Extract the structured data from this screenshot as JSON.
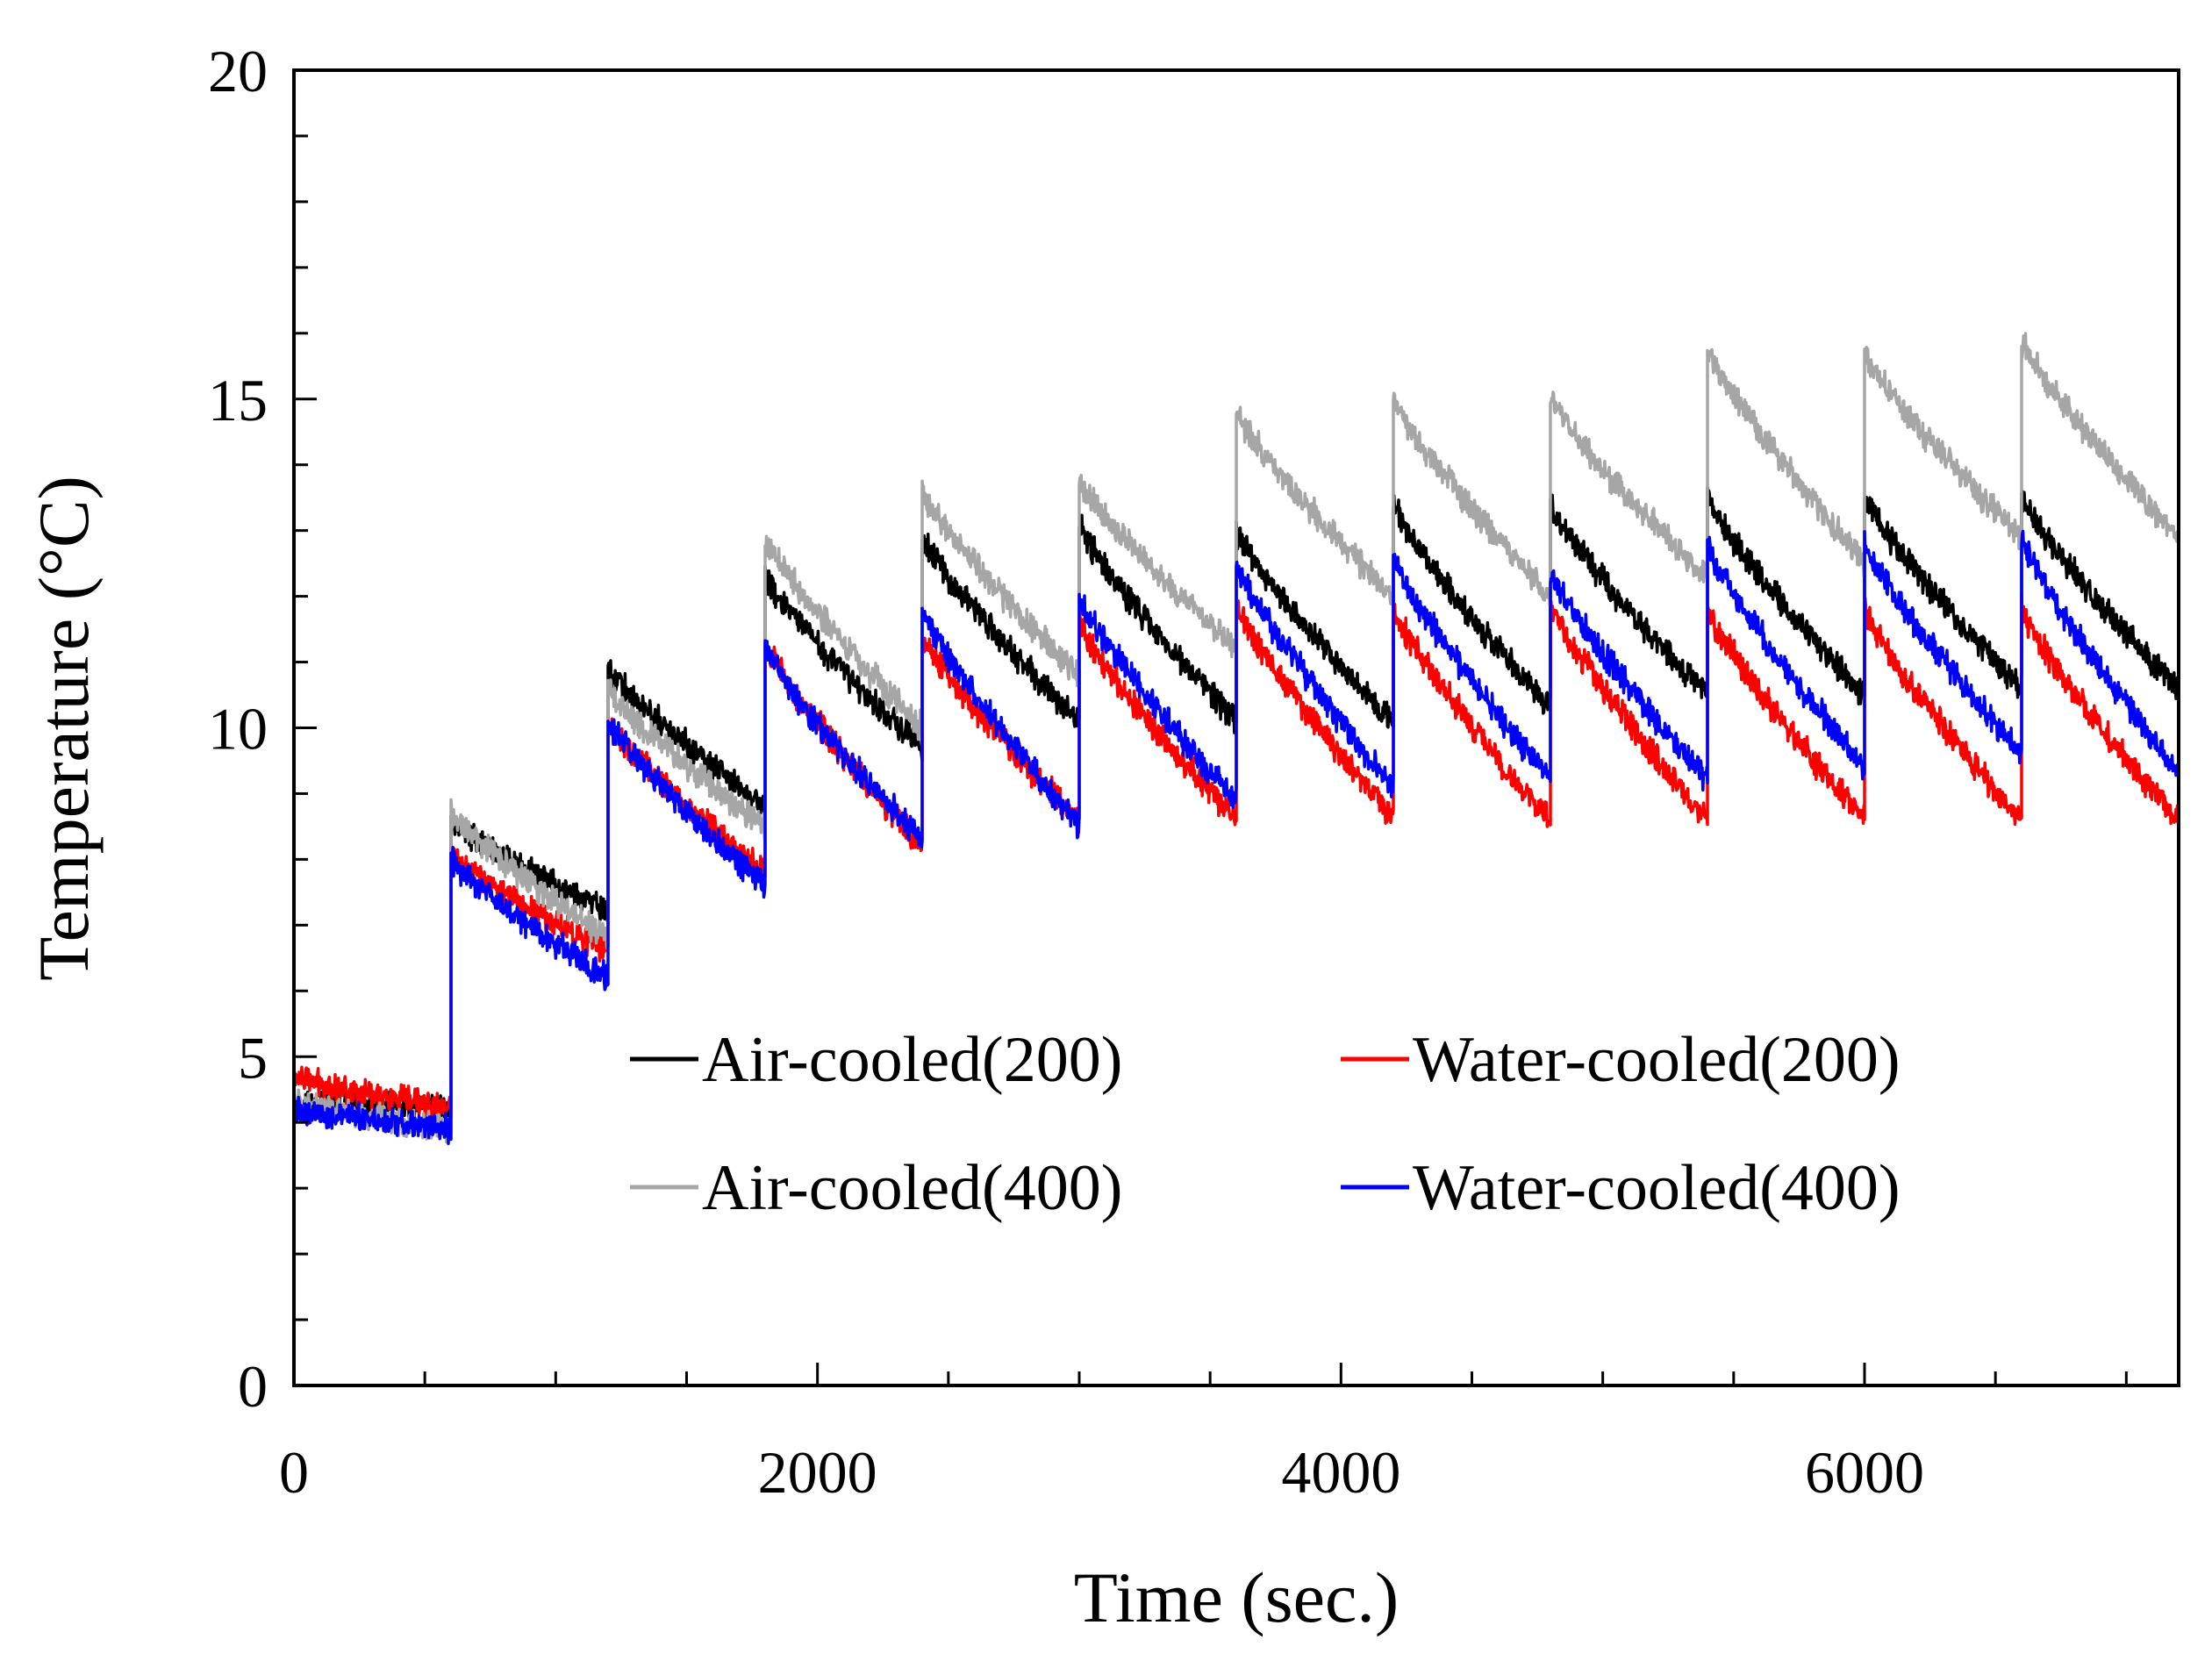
{
  "chart_data": {
    "type": "line",
    "title": "",
    "xlabel": "Time (sec.)",
    "ylabel": "Temperature (°C)",
    "xlim": [
      0,
      7200
    ],
    "ylim": [
      0,
      20
    ],
    "xticks": [
      0,
      2000,
      4000,
      6000
    ],
    "yticks": [
      0,
      5,
      10,
      15,
      20
    ],
    "x_minor_step": 500,
    "y_minor_step": 1,
    "grid": false,
    "legend_position": "center, two columns",
    "cycle_period": 600,
    "series": [
      {
        "name": "Air-cooled(200)",
        "color": "#000000",
        "cycles": [
          [
            0,
            4.3,
            4.2
          ],
          [
            600,
            8.6,
            7.2
          ],
          [
            1200,
            10.9,
            8.8
          ],
          [
            1800,
            12.3,
            9.7
          ],
          [
            2400,
            12.9,
            10.1
          ],
          [
            3000,
            13.1,
            10.1
          ],
          [
            3600,
            13.0,
            10.1
          ],
          [
            4200,
            13.4,
            10.3
          ],
          [
            4800,
            13.4,
            10.5
          ],
          [
            5400,
            13.5,
            10.5
          ],
          [
            6000,
            13.5,
            10.6
          ],
          [
            6600,
            13.5,
            10.6
          ]
        ]
      },
      {
        "name": "Water-cooled(200)",
        "color": "#ff0000",
        "cycles": [
          [
            0,
            4.7,
            4.2
          ],
          [
            600,
            8.1,
            6.6
          ],
          [
            1200,
            10.1,
            7.8
          ],
          [
            1800,
            11.3,
            8.2
          ],
          [
            2400,
            11.4,
            8.6
          ],
          [
            3000,
            11.6,
            8.6
          ],
          [
            3600,
            11.9,
            8.6
          ],
          [
            4200,
            11.8,
            8.6
          ],
          [
            4800,
            11.9,
            8.6
          ],
          [
            5400,
            11.8,
            8.6
          ],
          [
            6000,
            11.8,
            8.6
          ],
          [
            6600,
            11.8,
            8.6
          ]
        ]
      },
      {
        "name": "Air-cooled(400)",
        "color": "#a6a6a6",
        "cycles": [
          [
            0,
            4.3,
            3.9
          ],
          [
            600,
            8.7,
            6.8
          ],
          [
            1200,
            10.6,
            8.5
          ],
          [
            1800,
            12.9,
            10.0
          ],
          [
            2400,
            13.6,
            10.8
          ],
          [
            3000,
            13.8,
            11.2
          ],
          [
            3600,
            14.8,
            12.0
          ],
          [
            4200,
            15.0,
            12.0
          ],
          [
            4800,
            15.0,
            12.3
          ],
          [
            5400,
            15.8,
            12.5
          ],
          [
            6000,
            15.7,
            12.9
          ],
          [
            6600,
            15.9,
            12.9
          ]
        ]
      },
      {
        "name": "Water-cooled(400)",
        "color": "#0000ff",
        "cycles": [
          [
            0,
            4.2,
            3.9
          ],
          [
            600,
            8.0,
            6.2
          ],
          [
            1200,
            10.1,
            7.6
          ],
          [
            1800,
            11.2,
            8.3
          ],
          [
            2400,
            11.8,
            8.5
          ],
          [
            3000,
            12.0,
            8.9
          ],
          [
            3600,
            12.5,
            9.1
          ],
          [
            4200,
            12.6,
            9.2
          ],
          [
            4800,
            12.4,
            9.2
          ],
          [
            5400,
            12.8,
            9.4
          ],
          [
            6000,
            12.8,
            9.6
          ],
          [
            6600,
            12.9,
            9.3
          ]
        ]
      }
    ]
  }
}
